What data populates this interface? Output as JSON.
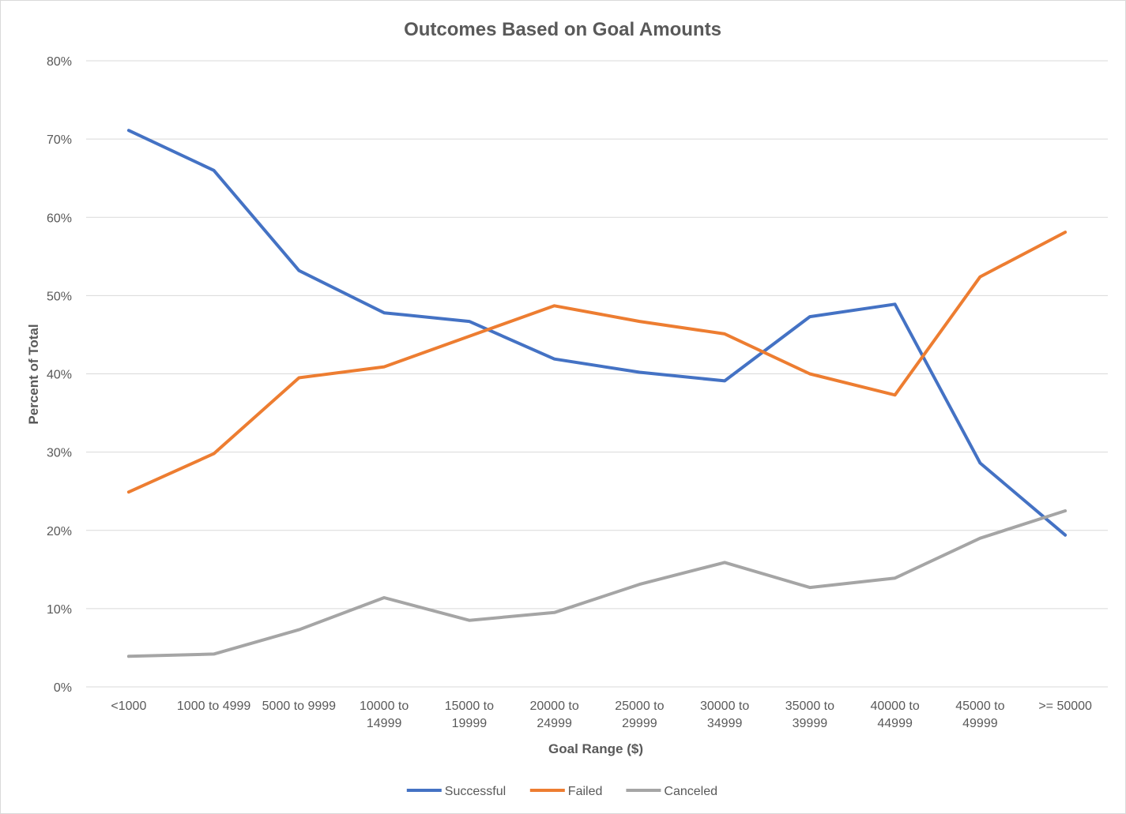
{
  "chart_data": {
    "type": "line",
    "title": "Outcomes Based on Goal Amounts",
    "xlabel": "Goal Range ($)",
    "ylabel": "Percent of Total",
    "ylim": [
      0,
      80
    ],
    "yticks": [
      0,
      10,
      20,
      30,
      40,
      50,
      60,
      70,
      80
    ],
    "ytick_labels": [
      "0%",
      "10%",
      "20%",
      "30%",
      "40%",
      "50%",
      "60%",
      "70%",
      "80%"
    ],
    "grid": true,
    "legend_position": "bottom",
    "categories": [
      [
        "<1000"
      ],
      [
        "1000 to 4999"
      ],
      [
        "5000 to 9999"
      ],
      [
        "10000 to",
        "14999"
      ],
      [
        "15000 to",
        "19999"
      ],
      [
        "20000 to",
        "24999"
      ],
      [
        "25000 to",
        "29999"
      ],
      [
        "30000 to",
        "34999"
      ],
      [
        "35000 to",
        "39999"
      ],
      [
        "40000 to",
        "44999"
      ],
      [
        "45000 to",
        "49999"
      ],
      [
        ">= 50000"
      ]
    ],
    "series": [
      {
        "name": "Successful",
        "color": "#4472c4",
        "values": [
          71.1,
          66.0,
          53.2,
          47.8,
          46.7,
          41.9,
          40.2,
          39.1,
          47.3,
          48.9,
          28.6,
          19.4
        ]
      },
      {
        "name": "Failed",
        "color": "#ed7d31",
        "values": [
          24.9,
          29.8,
          39.5,
          40.9,
          44.8,
          48.7,
          46.7,
          45.1,
          40.0,
          37.3,
          52.4,
          58.1
        ]
      },
      {
        "name": "Canceled",
        "color": "#a5a5a5",
        "values": [
          3.9,
          4.2,
          7.3,
          11.4,
          8.5,
          9.5,
          13.1,
          15.9,
          12.7,
          13.9,
          19.0,
          22.5
        ]
      }
    ]
  }
}
